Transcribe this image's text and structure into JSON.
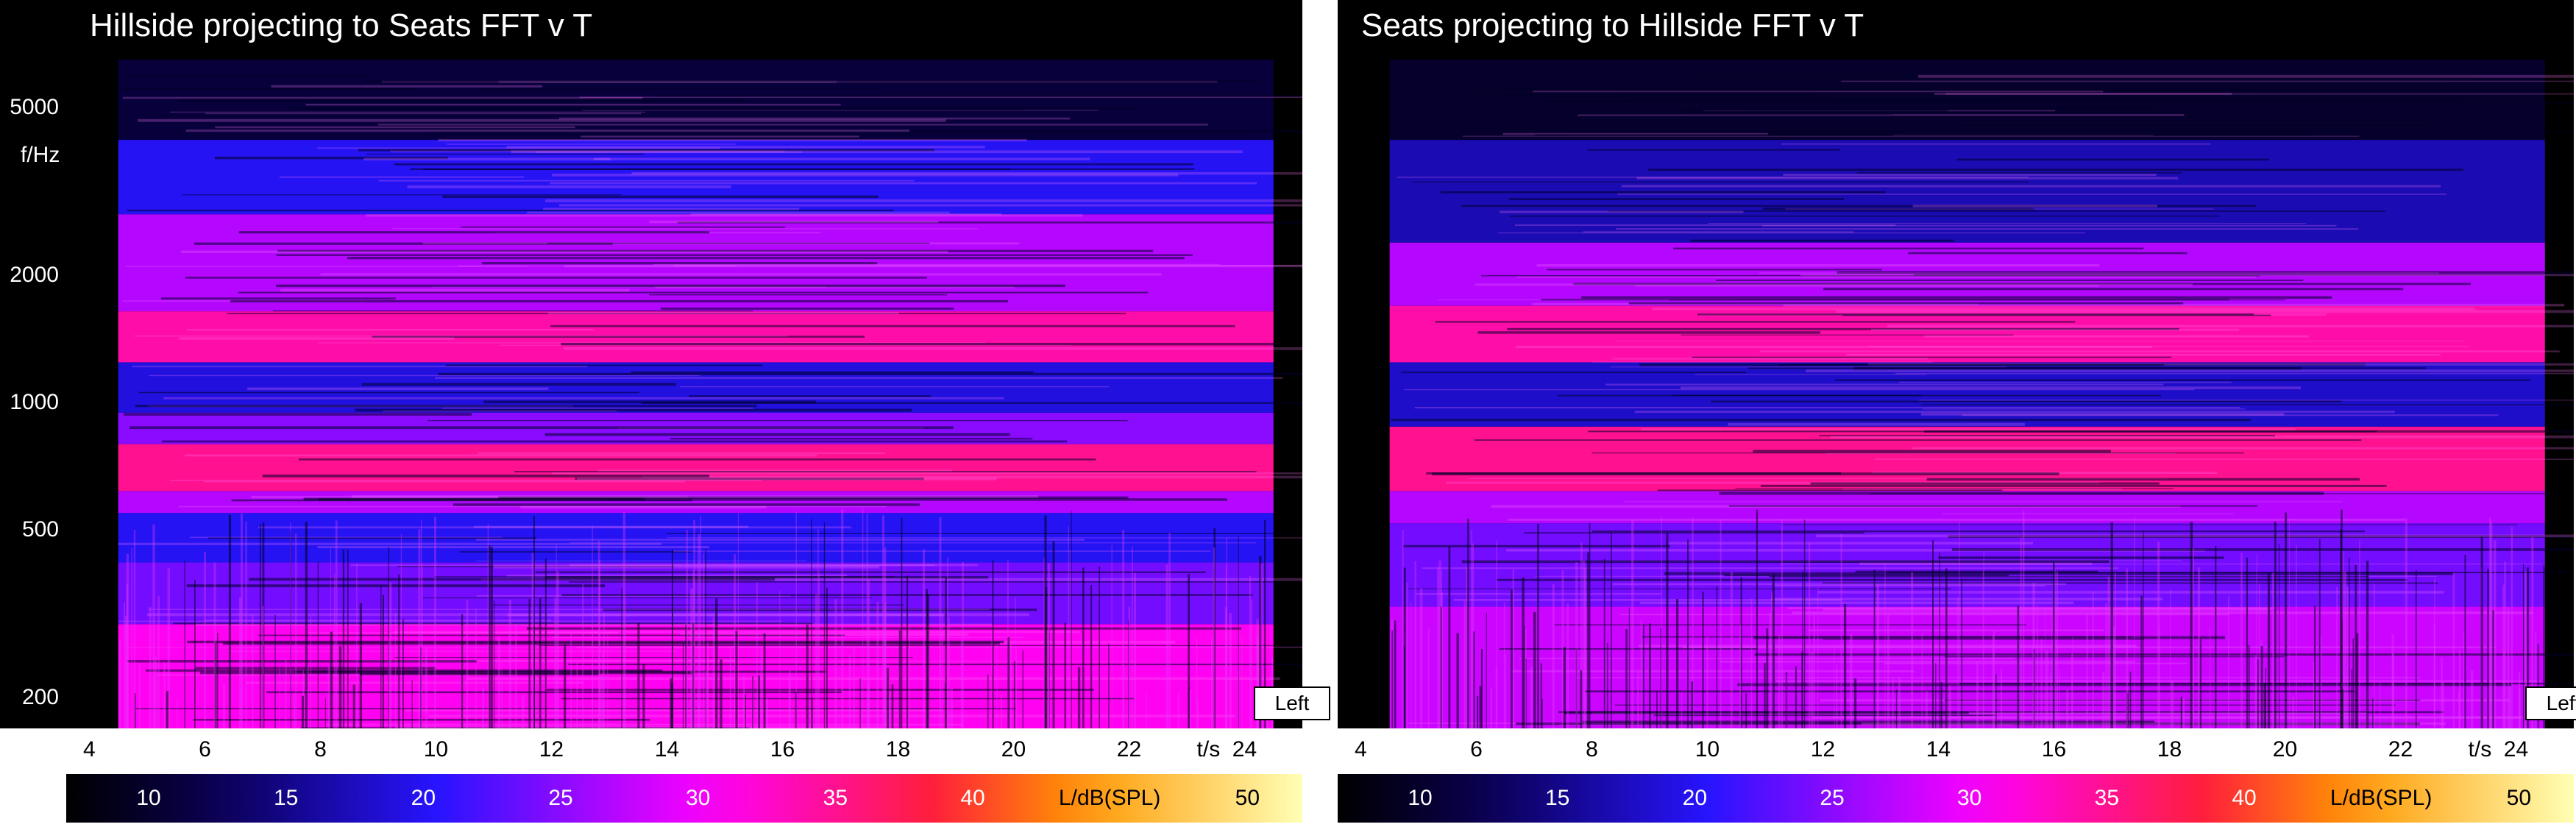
{
  "chart_data": [
    {
      "type": "heatmap",
      "title": "Hillside projecting to Seats FFT v T",
      "ylabel": "f/Hz",
      "xlabel": "t/s",
      "x_ticks": [
        4,
        6,
        8,
        10,
        12,
        14,
        16,
        18,
        20,
        22,
        24
      ],
      "y_ticks": [
        200,
        500,
        1000,
        2000,
        5000
      ],
      "y_scale": "log",
      "xlim": [
        3.6,
        25
      ],
      "ylim": [
        170,
        9000
      ],
      "data_xlim": [
        4.5,
        24.5
      ],
      "channel_label": "Left",
      "colorbar": {
        "label": "L/dB(SPL)",
        "ticks": [
          10,
          15,
          20,
          25,
          30,
          35,
          40,
          45,
          50
        ],
        "range": [
          7,
          52
        ]
      },
      "bands": [
        {
          "f_low": 170,
          "f_high": 300,
          "level_db": 31
        },
        {
          "f_low": 300,
          "f_high": 420,
          "level_db": 24
        },
        {
          "f_low": 420,
          "f_high": 550,
          "level_db": 20
        },
        {
          "f_low": 550,
          "f_high": 620,
          "level_db": 27
        },
        {
          "f_low": 620,
          "f_high": 800,
          "level_db": 35
        },
        {
          "f_low": 800,
          "f_high": 950,
          "level_db": 25
        },
        {
          "f_low": 950,
          "f_high": 1250,
          "level_db": 19
        },
        {
          "f_low": 1250,
          "f_high": 1650,
          "level_db": 34
        },
        {
          "f_low": 1650,
          "f_high": 2800,
          "level_db": 27
        },
        {
          "f_low": 2800,
          "f_high": 4200,
          "level_db": 20
        },
        {
          "f_low": 4200,
          "f_high": 6500,
          "level_db": 11
        }
      ],
      "colors": {
        "low": "#000000",
        "mid": "#ff00ff",
        "high": "#ffff66"
      }
    },
    {
      "type": "heatmap",
      "title": "Seats projecting to Hillside FFT v T",
      "ylabel": "",
      "xlabel": "t/s",
      "x_ticks": [
        4,
        6,
        8,
        10,
        12,
        14,
        16,
        18,
        20,
        22,
        24
      ],
      "y_ticks": [],
      "y_scale": "log",
      "xlim": [
        3.6,
        25
      ],
      "ylim": [
        170,
        9000
      ],
      "data_xlim": [
        4.5,
        24.5
      ],
      "channel_label": "Left",
      "colorbar": {
        "label": "L/dB(SPL)",
        "ticks": [
          10,
          15,
          20,
          25,
          30,
          35,
          40,
          45,
          50
        ],
        "range": [
          7,
          52
        ]
      },
      "bands": [
        {
          "f_low": 170,
          "f_high": 330,
          "level_db": 28
        },
        {
          "f_low": 330,
          "f_high": 520,
          "level_db": 24
        },
        {
          "f_low": 520,
          "f_high": 620,
          "level_db": 27
        },
        {
          "f_low": 620,
          "f_high": 880,
          "level_db": 35
        },
        {
          "f_low": 880,
          "f_high": 1250,
          "level_db": 18
        },
        {
          "f_low": 1250,
          "f_high": 1700,
          "level_db": 34
        },
        {
          "f_low": 1700,
          "f_high": 2400,
          "level_db": 27
        },
        {
          "f_low": 2400,
          "f_high": 4200,
          "level_db": 17
        },
        {
          "f_low": 4200,
          "f_high": 6500,
          "level_db": 10
        }
      ],
      "colors": {
        "low": "#000000",
        "mid": "#ff00ff",
        "high": "#ffff66"
      }
    }
  ]
}
